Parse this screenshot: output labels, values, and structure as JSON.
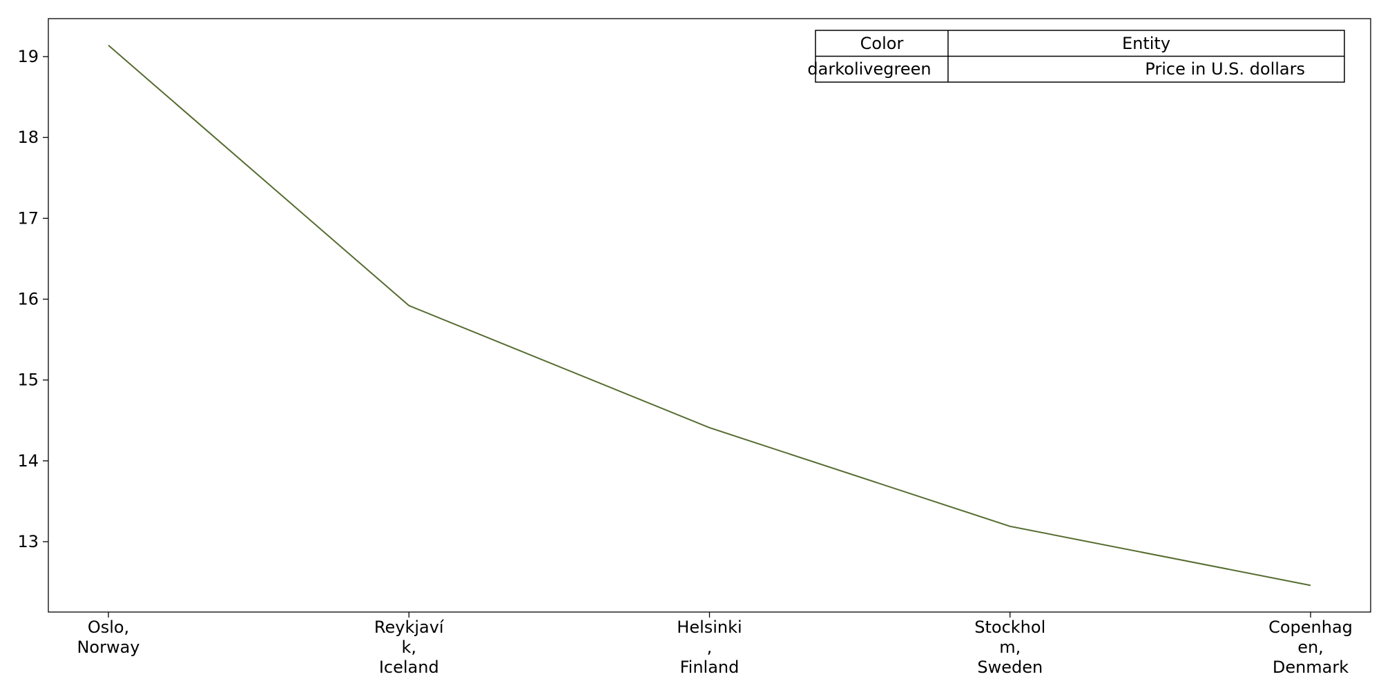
{
  "chart_data": {
    "type": "line",
    "categories": [
      [
        "Oslo,",
        "Norway"
      ],
      [
        "Reykjaví",
        "k,",
        "Iceland"
      ],
      [
        "Helsinki",
        ",",
        "Finland"
      ],
      [
        "Stockhol",
        "m,",
        "Sweden"
      ],
      [
        "Copenhag",
        "en,",
        "Denmark"
      ]
    ],
    "series": [
      {
        "name": "Price in U.S. dollars",
        "color": "#556b2f",
        "values": [
          19.14,
          15.92,
          14.41,
          13.19,
          12.46
        ]
      }
    ],
    "yticks": [
      13,
      14,
      15,
      16,
      17,
      18,
      19
    ],
    "ylim": [
      12.13,
      19.47
    ],
    "grid": false,
    "legend": {
      "placement": "top-right",
      "headers": [
        "Color",
        "Entity"
      ],
      "rows": [
        [
          "darkolivegreen",
          "Price in U.S. dollars"
        ]
      ]
    }
  }
}
